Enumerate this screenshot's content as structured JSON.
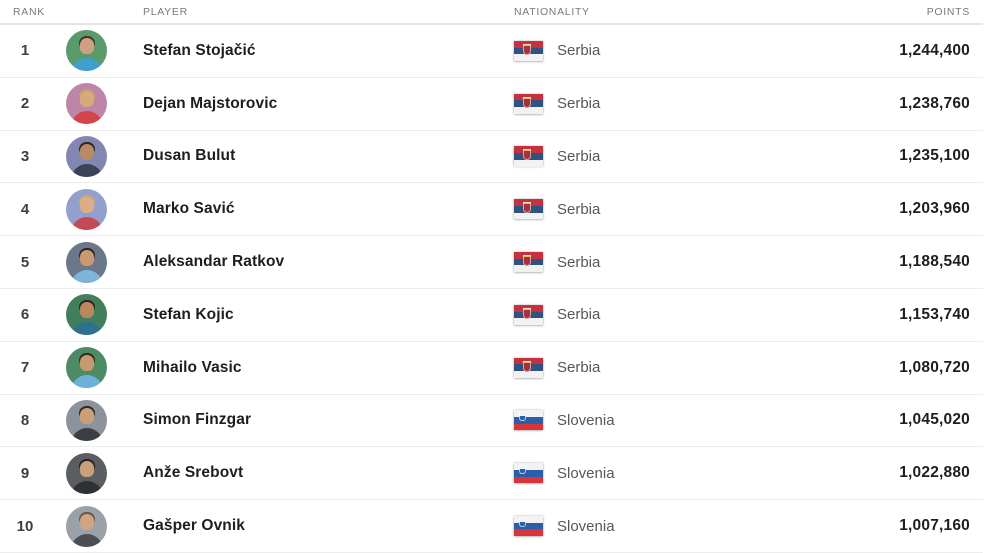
{
  "table": {
    "headers": {
      "rank": "RANK",
      "player": "PLAYER",
      "nationality": "NATIONALITY",
      "points": "POINTS"
    },
    "rows": [
      {
        "rank": "1",
        "player": "Stefan Stojačić",
        "nationality": "Serbia",
        "flag": "serbia",
        "points": "1,244,400",
        "avatar": {
          "bg": "#5b9a6b",
          "jersey": "#3f9fd0",
          "skin": "#cfa083",
          "hair": "#463425"
        }
      },
      {
        "rank": "2",
        "player": "Dejan Majstorovic",
        "nationality": "Serbia",
        "flag": "serbia",
        "points": "1,238,760",
        "avatar": {
          "bg": "#bd86a8",
          "jersey": "#d2454d",
          "skin": "#d8a87f",
          "hair": "#c4a169"
        }
      },
      {
        "rank": "3",
        "player": "Dusan Bulut",
        "nationality": "Serbia",
        "flag": "serbia",
        "points": "1,235,100",
        "avatar": {
          "bg": "#8287b2",
          "jersey": "#3c415a",
          "skin": "#b98a63",
          "hair": "#33271d"
        }
      },
      {
        "rank": "4",
        "player": "Marko Savić",
        "nationality": "Serbia",
        "flag": "serbia",
        "points": "1,203,960",
        "avatar": {
          "bg": "#93a0cd",
          "jersey": "#c44a55",
          "skin": "#dbae89",
          "hair": "#c7ab6e"
        }
      },
      {
        "rank": "5",
        "player": "Aleksandar Ratkov",
        "nationality": "Serbia",
        "flag": "serbia",
        "points": "1,188,540",
        "avatar": {
          "bg": "#6b788a",
          "jersey": "#7cb5d9",
          "skin": "#c99a72",
          "hair": "#2c2722"
        }
      },
      {
        "rank": "6",
        "player": "Stefan Kojic",
        "nationality": "Serbia",
        "flag": "serbia",
        "points": "1,153,740",
        "avatar": {
          "bg": "#417e5c",
          "jersey": "#2f6f8f",
          "skin": "#b9885f",
          "hair": "#2b241d"
        }
      },
      {
        "rank": "7",
        "player": "Mihailo Vasic",
        "nationality": "Serbia",
        "flag": "serbia",
        "points": "1,080,720",
        "avatar": {
          "bg": "#4d8b65",
          "jersey": "#6cb1d8",
          "skin": "#c89a6f",
          "hair": "#352b22"
        }
      },
      {
        "rank": "8",
        "player": "Simon Finzgar",
        "nationality": "Slovenia",
        "flag": "slovenia",
        "points": "1,045,020",
        "avatar": {
          "bg": "#8d939c",
          "jersey": "#3b3e43",
          "skin": "#c9a07a",
          "hair": "#2f2a25"
        }
      },
      {
        "rank": "9",
        "player": "Anže Srebovt",
        "nationality": "Slovenia",
        "flag": "slovenia",
        "points": "1,022,880",
        "avatar": {
          "bg": "#5a5e63",
          "jersey": "#2e3033",
          "skin": "#c9a07a",
          "hair": "#26221e"
        }
      },
      {
        "rank": "10",
        "player": "Gašper Ovnik",
        "nationality": "Slovenia",
        "flag": "slovenia",
        "points": "1,007,160",
        "avatar": {
          "bg": "#9ba1a9",
          "jersey": "#4b4f55",
          "skin": "#cfa584",
          "hair": "#6b5b49"
        }
      }
    ]
  },
  "flags": {
    "serbia": {
      "stripes": [
        "#c5323f",
        "#31517e",
        "#f2f2f2"
      ]
    },
    "slovenia": {
      "stripes": [
        "#f2f2f2",
        "#2a5ea8",
        "#d8343c"
      ]
    }
  },
  "colors": {
    "header_divider": "#e4e4e7",
    "row_divider": "#ededee",
    "header_text": "#77797d",
    "primary_text": "#1e1e1f",
    "secondary_text": "#55575b"
  }
}
